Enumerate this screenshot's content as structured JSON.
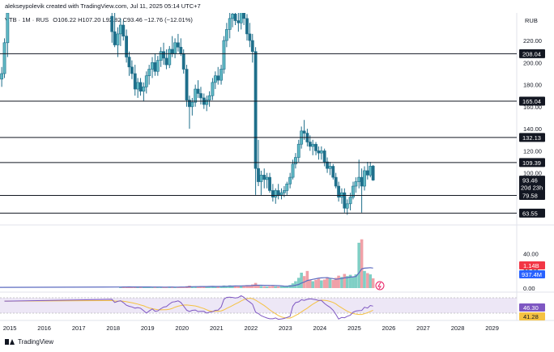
{
  "header": {
    "author_line": "alekseypolevik created with TradingView.com, Jul 11, 2025 05:14 UTC+7",
    "symbol": "VTB · 1M · RUS",
    "ohlc": "O106.22 H107.20 L92.82 C93.46 −12.76 (−12.01%)",
    "currency": "RUB"
  },
  "footer": {
    "brand": "TradingView"
  },
  "colors": {
    "up": "#26a69a",
    "down": "#1f6f8b",
    "candle_up_body": "#5fb8c4",
    "level_line": "#131722",
    "label_bg": "#131722",
    "label_text": "#ffffff",
    "volume_up": "#7fcfc5",
    "volume_down": "#f0a1a8",
    "volume_ma": "#5c6bc0",
    "rsi_line": "#7e57c2",
    "rsi_ma": "#f5c242",
    "rsi_band": "#ede7f6",
    "price_tag_red": "#f23645",
    "price_tag_blue": "#2962ff",
    "price_tag_dark": "#131722"
  },
  "chart_data": {
    "type": "candlestick",
    "price_axis": {
      "ticks": [
        220,
        200,
        180,
        160,
        140,
        120,
        100
      ],
      "tick_labels": [
        "220.00",
        "200.00",
        "180.00",
        "160.00",
        "140.00",
        "120.00",
        "100.00"
      ],
      "ylim": [
        55,
        245
      ]
    },
    "volume_axis": {
      "ticks": [
        40,
        20,
        0
      ],
      "tick_labels": [
        "40.00",
        "20.00",
        "0.00"
      ],
      "ylim": [
        0,
        70
      ]
    },
    "time_axis": {
      "labels": [
        "2015",
        "2016",
        "2017",
        "2018",
        "2019",
        "2020",
        "2021",
        "2022",
        "2023",
        "2024",
        "2025",
        "2026",
        "2027",
        "2028",
        "2029"
      ],
      "xlim": [
        2014.7,
        2029.7
      ]
    },
    "levels": [
      {
        "value": 208.04,
        "label": "208.04"
      },
      {
        "value": 165.04,
        "label": "165.04"
      },
      {
        "value": 132.13,
        "label": "132.13"
      },
      {
        "value": 109.39,
        "label": "109.39"
      },
      {
        "value": 79.58,
        "label": "79.58"
      },
      {
        "value": 63.55,
        "label": "63.55"
      }
    ],
    "last_price": {
      "value": 93.46,
      "label": "93.46",
      "countdown": "20d 23h"
    },
    "volume_tags": {
      "volume": "1.14B",
      "volume_ma": "937.4M"
    },
    "rsi_tags": {
      "rsi": "46.30",
      "rsi_ma": "41.28"
    },
    "candles": [
      {
        "t": 2014.75,
        "o": 185,
        "h": 196,
        "l": 178,
        "c": 190
      },
      {
        "t": 2014.83,
        "o": 190,
        "h": 222,
        "l": 186,
        "c": 218
      },
      {
        "t": 2014.92,
        "o": 218,
        "h": 250,
        "l": 205,
        "c": 245
      },
      {
        "t": 2017.95,
        "o": 242,
        "h": 250,
        "l": 218,
        "c": 228
      },
      {
        "t": 2018.03,
        "o": 228,
        "h": 250,
        "l": 214,
        "c": 216
      },
      {
        "t": 2018.12,
        "o": 216,
        "h": 232,
        "l": 205,
        "c": 226
      },
      {
        "t": 2018.2,
        "o": 226,
        "h": 240,
        "l": 215,
        "c": 234
      },
      {
        "t": 2018.28,
        "o": 234,
        "h": 238,
        "l": 220,
        "c": 224
      },
      {
        "t": 2018.37,
        "o": 224,
        "h": 230,
        "l": 200,
        "c": 205
      },
      {
        "t": 2018.45,
        "o": 205,
        "h": 210,
        "l": 188,
        "c": 196
      },
      {
        "t": 2018.53,
        "o": 196,
        "h": 202,
        "l": 185,
        "c": 190
      },
      {
        "t": 2018.62,
        "o": 190,
        "h": 198,
        "l": 170,
        "c": 176
      },
      {
        "t": 2018.7,
        "o": 176,
        "h": 186,
        "l": 168,
        "c": 182
      },
      {
        "t": 2018.78,
        "o": 182,
        "h": 186,
        "l": 170,
        "c": 174
      },
      {
        "t": 2018.87,
        "o": 174,
        "h": 182,
        "l": 165,
        "c": 178
      },
      {
        "t": 2018.95,
        "o": 178,
        "h": 192,
        "l": 172,
        "c": 188
      },
      {
        "t": 2019.03,
        "o": 188,
        "h": 198,
        "l": 180,
        "c": 194
      },
      {
        "t": 2019.12,
        "o": 194,
        "h": 205,
        "l": 186,
        "c": 200
      },
      {
        "t": 2019.2,
        "o": 200,
        "h": 208,
        "l": 188,
        "c": 192
      },
      {
        "t": 2019.28,
        "o": 192,
        "h": 206,
        "l": 188,
        "c": 202
      },
      {
        "t": 2019.37,
        "o": 202,
        "h": 214,
        "l": 196,
        "c": 210
      },
      {
        "t": 2019.45,
        "o": 210,
        "h": 218,
        "l": 198,
        "c": 204
      },
      {
        "t": 2019.53,
        "o": 204,
        "h": 212,
        "l": 194,
        "c": 198
      },
      {
        "t": 2019.62,
        "o": 198,
        "h": 215,
        "l": 195,
        "c": 212
      },
      {
        "t": 2019.7,
        "o": 212,
        "h": 224,
        "l": 205,
        "c": 208
      },
      {
        "t": 2019.78,
        "o": 208,
        "h": 222,
        "l": 204,
        "c": 218
      },
      {
        "t": 2019.87,
        "o": 218,
        "h": 226,
        "l": 210,
        "c": 214
      },
      {
        "t": 2019.95,
        "o": 214,
        "h": 222,
        "l": 206,
        "c": 208
      },
      {
        "t": 2020.03,
        "o": 208,
        "h": 212,
        "l": 190,
        "c": 194
      },
      {
        "t": 2020.12,
        "o": 194,
        "h": 198,
        "l": 160,
        "c": 166
      },
      {
        "t": 2020.2,
        "o": 166,
        "h": 170,
        "l": 140,
        "c": 160
      },
      {
        "t": 2020.28,
        "o": 160,
        "h": 168,
        "l": 152,
        "c": 164
      },
      {
        "t": 2020.37,
        "o": 164,
        "h": 180,
        "l": 160,
        "c": 176
      },
      {
        "t": 2020.45,
        "o": 176,
        "h": 184,
        "l": 168,
        "c": 172
      },
      {
        "t": 2020.53,
        "o": 172,
        "h": 178,
        "l": 162,
        "c": 168
      },
      {
        "t": 2020.62,
        "o": 168,
        "h": 172,
        "l": 158,
        "c": 162
      },
      {
        "t": 2020.7,
        "o": 162,
        "h": 170,
        "l": 156,
        "c": 166
      },
      {
        "t": 2020.78,
        "o": 166,
        "h": 174,
        "l": 160,
        "c": 170
      },
      {
        "t": 2020.87,
        "o": 170,
        "h": 186,
        "l": 166,
        "c": 182
      },
      {
        "t": 2020.95,
        "o": 182,
        "h": 192,
        "l": 176,
        "c": 188
      },
      {
        "t": 2021.03,
        "o": 188,
        "h": 196,
        "l": 180,
        "c": 184
      },
      {
        "t": 2021.12,
        "o": 184,
        "h": 198,
        "l": 180,
        "c": 194
      },
      {
        "t": 2021.2,
        "o": 194,
        "h": 224,
        "l": 190,
        "c": 220
      },
      {
        "t": 2021.28,
        "o": 220,
        "h": 236,
        "l": 214,
        "c": 230
      },
      {
        "t": 2021.37,
        "o": 230,
        "h": 246,
        "l": 222,
        "c": 240
      },
      {
        "t": 2021.45,
        "o": 240,
        "h": 250,
        "l": 232,
        "c": 244
      },
      {
        "t": 2021.53,
        "o": 244,
        "h": 250,
        "l": 234,
        "c": 238
      },
      {
        "t": 2021.62,
        "o": 238,
        "h": 246,
        "l": 228,
        "c": 236
      },
      {
        "t": 2021.7,
        "o": 236,
        "h": 250,
        "l": 230,
        "c": 246
      },
      {
        "t": 2021.78,
        "o": 246,
        "h": 250,
        "l": 234,
        "c": 240
      },
      {
        "t": 2021.87,
        "o": 240,
        "h": 244,
        "l": 220,
        "c": 226
      },
      {
        "t": 2021.95,
        "o": 226,
        "h": 236,
        "l": 214,
        "c": 220
      },
      {
        "t": 2022.03,
        "o": 220,
        "h": 226,
        "l": 200,
        "c": 210
      },
      {
        "t": 2022.12,
        "o": 210,
        "h": 214,
        "l": 80,
        "c": 104
      },
      {
        "t": 2022.2,
        "o": 104,
        "h": 130,
        "l": 88,
        "c": 92
      },
      {
        "t": 2022.28,
        "o": 92,
        "h": 102,
        "l": 80,
        "c": 98
      },
      {
        "t": 2022.37,
        "o": 98,
        "h": 104,
        "l": 86,
        "c": 94
      },
      {
        "t": 2022.45,
        "o": 94,
        "h": 100,
        "l": 86,
        "c": 96
      },
      {
        "t": 2022.53,
        "o": 96,
        "h": 100,
        "l": 82,
        "c": 84
      },
      {
        "t": 2022.62,
        "o": 84,
        "h": 90,
        "l": 74,
        "c": 78
      },
      {
        "t": 2022.7,
        "o": 78,
        "h": 86,
        "l": 72,
        "c": 84
      },
      {
        "t": 2022.78,
        "o": 84,
        "h": 90,
        "l": 76,
        "c": 80
      },
      {
        "t": 2022.87,
        "o": 80,
        "h": 86,
        "l": 76,
        "c": 82
      },
      {
        "t": 2022.95,
        "o": 82,
        "h": 88,
        "l": 78,
        "c": 84
      },
      {
        "t": 2023.03,
        "o": 84,
        "h": 92,
        "l": 80,
        "c": 90
      },
      {
        "t": 2023.12,
        "o": 90,
        "h": 100,
        "l": 86,
        "c": 96
      },
      {
        "t": 2023.2,
        "o": 96,
        "h": 112,
        "l": 94,
        "c": 108
      },
      {
        "t": 2023.28,
        "o": 108,
        "h": 118,
        "l": 104,
        "c": 114
      },
      {
        "t": 2023.37,
        "o": 114,
        "h": 130,
        "l": 110,
        "c": 126
      },
      {
        "t": 2023.45,
        "o": 126,
        "h": 142,
        "l": 122,
        "c": 138
      },
      {
        "t": 2023.53,
        "o": 138,
        "h": 148,
        "l": 130,
        "c": 136
      },
      {
        "t": 2023.62,
        "o": 136,
        "h": 140,
        "l": 124,
        "c": 128
      },
      {
        "t": 2023.7,
        "o": 128,
        "h": 134,
        "l": 120,
        "c": 124
      },
      {
        "t": 2023.78,
        "o": 124,
        "h": 130,
        "l": 116,
        "c": 126
      },
      {
        "t": 2023.87,
        "o": 126,
        "h": 128,
        "l": 116,
        "c": 120
      },
      {
        "t": 2023.95,
        "o": 120,
        "h": 124,
        "l": 112,
        "c": 118
      },
      {
        "t": 2024.03,
        "o": 118,
        "h": 124,
        "l": 112,
        "c": 120
      },
      {
        "t": 2024.12,
        "o": 120,
        "h": 122,
        "l": 106,
        "c": 110
      },
      {
        "t": 2024.2,
        "o": 110,
        "h": 114,
        "l": 100,
        "c": 104
      },
      {
        "t": 2024.28,
        "o": 104,
        "h": 110,
        "l": 98,
        "c": 106
      },
      {
        "t": 2024.37,
        "o": 106,
        "h": 108,
        "l": 94,
        "c": 96
      },
      {
        "t": 2024.45,
        "o": 96,
        "h": 100,
        "l": 86,
        "c": 88
      },
      {
        "t": 2024.53,
        "o": 88,
        "h": 92,
        "l": 74,
        "c": 78
      },
      {
        "t": 2024.62,
        "o": 78,
        "h": 86,
        "l": 72,
        "c": 82
      },
      {
        "t": 2024.7,
        "o": 82,
        "h": 86,
        "l": 64,
        "c": 68
      },
      {
        "t": 2024.78,
        "o": 68,
        "h": 76,
        "l": 62,
        "c": 72
      },
      {
        "t": 2024.87,
        "o": 72,
        "h": 82,
        "l": 66,
        "c": 78
      },
      {
        "t": 2024.95,
        "o": 78,
        "h": 92,
        "l": 76,
        "c": 88
      },
      {
        "t": 2025.03,
        "o": 88,
        "h": 96,
        "l": 82,
        "c": 92
      },
      {
        "t": 2025.12,
        "o": 92,
        "h": 112,
        "l": 86,
        "c": 96
      },
      {
        "t": 2025.2,
        "o": 96,
        "h": 104,
        "l": 64,
        "c": 88
      },
      {
        "t": 2025.28,
        "o": 88,
        "h": 106,
        "l": 84,
        "c": 102
      },
      {
        "t": 2025.37,
        "o": 102,
        "h": 110,
        "l": 94,
        "c": 98
      },
      {
        "t": 2025.45,
        "o": 98,
        "h": 110,
        "l": 96,
        "c": 106
      },
      {
        "t": 2025.53,
        "o": 106.22,
        "h": 107.2,
        "l": 92.82,
        "c": 93.46
      }
    ],
    "volume": [
      {
        "t": 2018.2,
        "v": 1.2
      },
      {
        "t": 2018.28,
        "v": 1.4
      },
      {
        "t": 2018.37,
        "v": 1.3
      },
      {
        "t": 2018.45,
        "v": 1.6
      },
      {
        "t": 2018.53,
        "v": 1.1
      },
      {
        "t": 2018.62,
        "v": 1.5
      },
      {
        "t": 2018.7,
        "v": 1.2
      },
      {
        "t": 2018.78,
        "v": 1.0
      },
      {
        "t": 2018.87,
        "v": 1.3
      },
      {
        "t": 2018.95,
        "v": 1.6
      },
      {
        "t": 2019.03,
        "v": 1.1
      },
      {
        "t": 2019.12,
        "v": 1.0
      },
      {
        "t": 2019.2,
        "v": 1.2
      },
      {
        "t": 2019.28,
        "v": 1.1
      },
      {
        "t": 2019.37,
        "v": 1.3
      },
      {
        "t": 2019.45,
        "v": 1.0
      },
      {
        "t": 2019.53,
        "v": 1.2
      },
      {
        "t": 2019.62,
        "v": 1.4
      },
      {
        "t": 2019.7,
        "v": 1.1
      },
      {
        "t": 2019.78,
        "v": 1.3
      },
      {
        "t": 2019.87,
        "v": 1.2
      },
      {
        "t": 2019.95,
        "v": 1.5
      },
      {
        "t": 2020.03,
        "v": 1.4
      },
      {
        "t": 2020.12,
        "v": 2.2
      },
      {
        "t": 2020.2,
        "v": 2.8
      },
      {
        "t": 2020.28,
        "v": 2.0
      },
      {
        "t": 2020.37,
        "v": 1.8
      },
      {
        "t": 2020.45,
        "v": 1.6
      },
      {
        "t": 2020.53,
        "v": 1.7
      },
      {
        "t": 2020.62,
        "v": 1.5
      },
      {
        "t": 2020.7,
        "v": 1.6
      },
      {
        "t": 2020.78,
        "v": 1.9
      },
      {
        "t": 2020.87,
        "v": 2.3
      },
      {
        "t": 2020.95,
        "v": 2.0
      },
      {
        "t": 2021.03,
        "v": 2.1
      },
      {
        "t": 2021.12,
        "v": 2.4
      },
      {
        "t": 2021.2,
        "v": 3.0
      },
      {
        "t": 2021.28,
        "v": 2.6
      },
      {
        "t": 2021.37,
        "v": 3.2
      },
      {
        "t": 2021.45,
        "v": 2.8
      },
      {
        "t": 2021.53,
        "v": 2.5
      },
      {
        "t": 2021.62,
        "v": 2.2
      },
      {
        "t": 2021.7,
        "v": 2.6
      },
      {
        "t": 2021.78,
        "v": 2.9
      },
      {
        "t": 2021.87,
        "v": 3.5
      },
      {
        "t": 2021.95,
        "v": 3.1
      },
      {
        "t": 2022.03,
        "v": 4.2
      },
      {
        "t": 2022.12,
        "v": 6.0
      },
      {
        "t": 2022.2,
        "v": 3.5
      },
      {
        "t": 2022.28,
        "v": 2.4
      },
      {
        "t": 2022.37,
        "v": 2.0
      },
      {
        "t": 2022.45,
        "v": 1.8
      },
      {
        "t": 2022.53,
        "v": 2.2
      },
      {
        "t": 2022.62,
        "v": 2.6
      },
      {
        "t": 2022.7,
        "v": 2.1
      },
      {
        "t": 2022.78,
        "v": 1.9
      },
      {
        "t": 2022.87,
        "v": 2.3
      },
      {
        "t": 2022.95,
        "v": 2.0
      },
      {
        "t": 2023.03,
        "v": 2.8
      },
      {
        "t": 2023.12,
        "v": 3.6
      },
      {
        "t": 2023.2,
        "v": 5.5
      },
      {
        "t": 2023.28,
        "v": 8.0
      },
      {
        "t": 2023.37,
        "v": 12.0
      },
      {
        "t": 2023.45,
        "v": 18.0
      },
      {
        "t": 2023.53,
        "v": 14.0
      },
      {
        "t": 2023.62,
        "v": 20.0
      },
      {
        "t": 2023.7,
        "v": 10.0
      },
      {
        "t": 2023.78,
        "v": 8.0
      },
      {
        "t": 2023.87,
        "v": 9.5
      },
      {
        "t": 2023.95,
        "v": 11.0
      },
      {
        "t": 2024.03,
        "v": 9.0
      },
      {
        "t": 2024.12,
        "v": 10.0
      },
      {
        "t": 2024.2,
        "v": 12.5
      },
      {
        "t": 2024.28,
        "v": 11.0
      },
      {
        "t": 2024.37,
        "v": 9.5
      },
      {
        "t": 2024.45,
        "v": 12.0
      },
      {
        "t": 2024.53,
        "v": 14.5
      },
      {
        "t": 2024.62,
        "v": 13.0
      },
      {
        "t": 2024.7,
        "v": 16.5
      },
      {
        "t": 2024.78,
        "v": 14.0
      },
      {
        "t": 2024.87,
        "v": 15.5
      },
      {
        "t": 2024.95,
        "v": 13.0
      },
      {
        "t": 2025.03,
        "v": 16.0
      },
      {
        "t": 2025.12,
        "v": 53.0
      },
      {
        "t": 2025.2,
        "v": 57.0
      },
      {
        "t": 2025.28,
        "v": 20.0
      },
      {
        "t": 2025.37,
        "v": 17.5
      },
      {
        "t": 2025.45,
        "v": 16.0
      },
      {
        "t": 2025.53,
        "v": 11.4
      }
    ]
  }
}
